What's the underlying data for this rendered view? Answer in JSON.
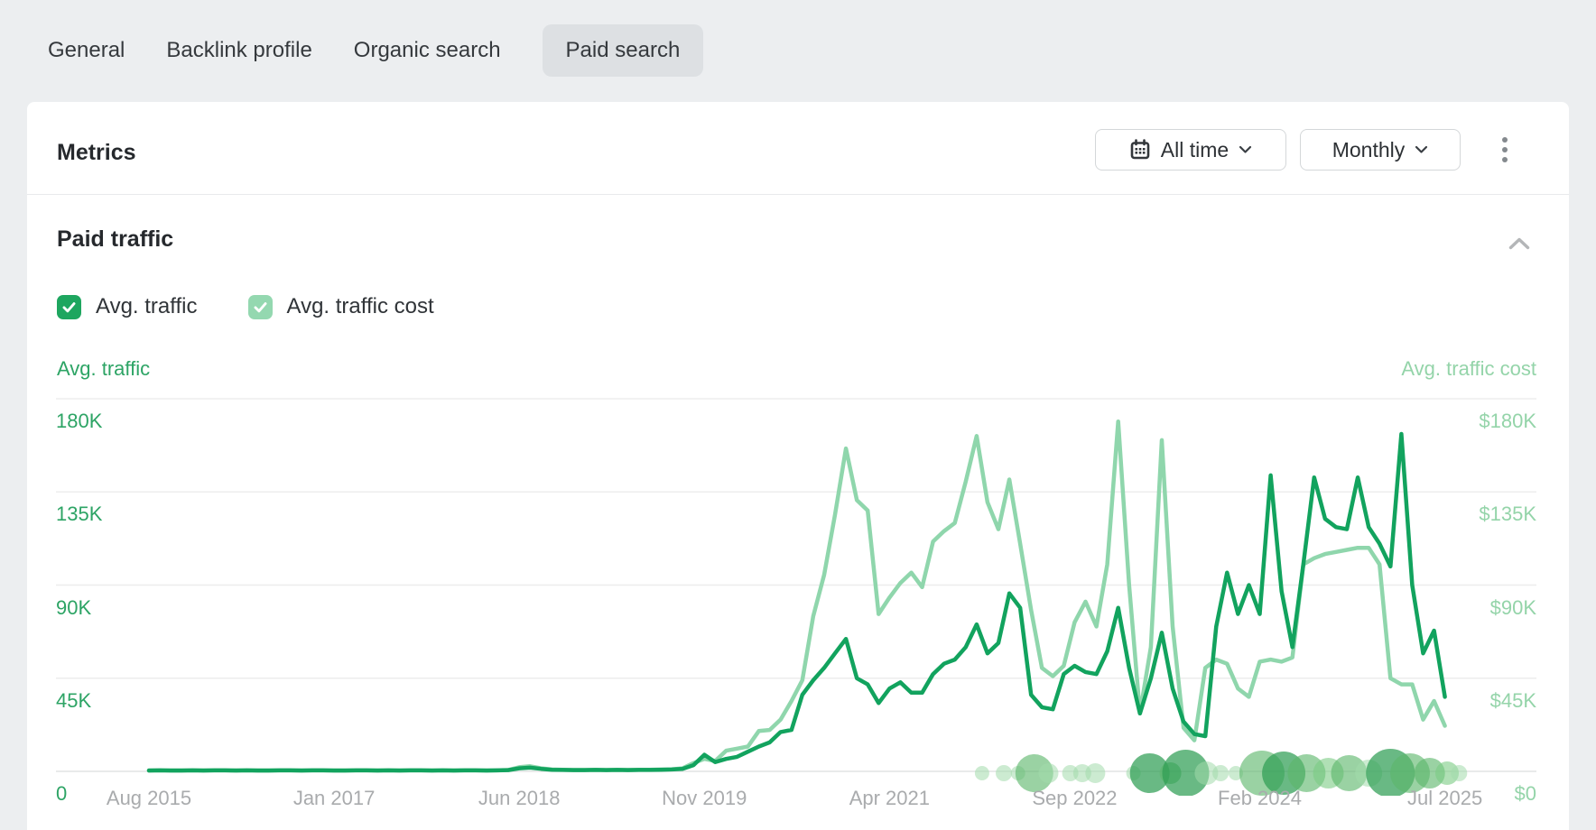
{
  "tabs": {
    "items": [
      {
        "label": "General",
        "active": false
      },
      {
        "label": "Backlink profile",
        "active": false
      },
      {
        "label": "Organic search",
        "active": false
      },
      {
        "label": "Paid search",
        "active": true
      }
    ]
  },
  "metrics_header": {
    "title": "Metrics",
    "date_range_button": {
      "label": "All time",
      "icon": "calendar-icon"
    },
    "granularity_button": {
      "label": "Monthly"
    },
    "more_menu_icon": "kebab-menu-icon"
  },
  "paid_traffic_section": {
    "title": "Paid traffic",
    "collapse_icon": "chevron-up-icon"
  },
  "legend": {
    "checkboxes": [
      {
        "label": "Avg. traffic",
        "checked": true,
        "color": "#1ea65f"
      },
      {
        "label": "Avg. traffic cost",
        "checked": true,
        "color": "#94d8b0"
      }
    ]
  },
  "chart_data": {
    "type": "line",
    "title": "Paid traffic",
    "interval": "monthly",
    "x_start": "Aug 2015",
    "x_end": "Jul 2025",
    "x_tick_labels": [
      "Aug 2015",
      "Jan 2017",
      "Jun 2018",
      "Nov 2019",
      "Apr 2021",
      "Sep 2022",
      "Feb 2024",
      "Jul 2025"
    ],
    "left_axis": {
      "title": "Avg. traffic",
      "ticks": [
        "0",
        "45K",
        "90K",
        "135K",
        "180K"
      ],
      "color": "#2da465",
      "range": [
        0,
        180000
      ]
    },
    "right_axis": {
      "title": "Avg. traffic cost",
      "ticks": [
        "$0",
        "$45K",
        "$90K",
        "$135K",
        "$180K"
      ],
      "color": "#94d4a9",
      "range": [
        0,
        180000
      ]
    },
    "grid": true,
    "grid_color": "#ededed",
    "series": [
      {
        "name": "Avg. traffic",
        "axis": "left",
        "unit": "visits",
        "color": "#12a35e",
        "values_thousands": [
          0.4,
          0.5,
          0.4,
          0.4,
          0.5,
          0.4,
          0.5,
          0.5,
          0.4,
          0.5,
          0.4,
          0.4,
          0.5,
          0.5,
          0.4,
          0.5,
          0.5,
          0.4,
          0.4,
          0.5,
          0.5,
          0.4,
          0.5,
          0.4,
          0.5,
          0.5,
          0.4,
          0.5,
          0.4,
          0.5,
          0.5,
          0.4,
          0.5,
          0.6,
          1.5,
          1.8,
          1.2,
          0.8,
          0.7,
          0.6,
          0.6,
          0.7,
          0.6,
          0.7,
          0.6,
          0.7,
          0.7,
          0.8,
          0.9,
          1.2,
          3,
          8,
          4.5,
          6,
          7,
          9.5,
          12,
          14,
          19,
          20,
          37,
          44,
          50,
          57,
          64,
          45,
          42,
          33,
          40,
          43,
          38,
          38,
          47,
          52,
          54,
          60,
          71,
          57,
          62,
          86,
          79,
          37,
          31,
          30,
          47,
          51,
          48,
          47,
          58,
          79,
          50,
          28,
          45,
          67,
          40,
          24,
          18,
          17,
          70,
          96,
          76,
          90,
          76,
          143,
          87,
          60,
          100,
          142,
          122,
          118,
          117,
          142,
          118,
          110,
          99,
          163,
          90,
          57,
          68,
          36
        ]
      },
      {
        "name": "Avg. traffic cost",
        "axis": "right",
        "unit": "USD",
        "color": "#8fd6ac",
        "values_thousands": [
          0.5,
          0.5,
          0.5,
          0.5,
          0.5,
          0.5,
          0.5,
          0.5,
          0.5,
          0.5,
          0.5,
          0.5,
          0.5,
          0.5,
          0.5,
          0.5,
          0.5,
          0.5,
          0.5,
          0.5,
          0.5,
          0.5,
          0.5,
          0.5,
          0.5,
          0.5,
          0.5,
          0.5,
          0.5,
          0.5,
          0.5,
          0.5,
          0.5,
          0.7,
          2,
          2.5,
          1.5,
          0.9,
          0.8,
          0.7,
          0.7,
          0.8,
          0.7,
          0.8,
          0.7,
          0.8,
          0.8,
          0.9,
          1,
          1.5,
          4,
          6,
          5,
          10,
          11,
          12,
          19.5,
          20,
          25,
          34,
          44,
          75,
          95,
          124,
          156,
          131,
          126,
          76,
          84,
          91,
          96,
          89,
          111,
          116,
          120,
          140,
          162,
          130,
          117,
          141,
          110,
          78,
          50,
          46,
          51,
          72,
          82,
          70,
          100,
          169,
          90,
          28,
          60,
          160,
          70,
          21,
          15,
          50,
          54,
          52,
          40,
          36,
          53,
          54,
          53,
          55,
          100,
          103,
          105,
          106,
          107,
          108,
          108,
          100,
          45,
          42,
          42,
          25,
          34,
          22
        ]
      }
    ],
    "event_bubbles": {
      "description": "overlapping translucent green bubbles along the x-axis baseline (month_index counted from Aug 2015)",
      "items": [
        {
          "month_index": 76.5,
          "r": 8,
          "tone": "light"
        },
        {
          "month_index": 78.5,
          "r": 9,
          "tone": "light"
        },
        {
          "month_index": 79.8,
          "r": 8,
          "tone": "light"
        },
        {
          "month_index": 81.3,
          "r": 21,
          "tone": "medium"
        },
        {
          "month_index": 82.6,
          "r": 11,
          "tone": "light"
        },
        {
          "month_index": 84.6,
          "r": 9,
          "tone": "light"
        },
        {
          "month_index": 85.7,
          "r": 10,
          "tone": "light"
        },
        {
          "month_index": 86.9,
          "r": 11,
          "tone": "light"
        },
        {
          "month_index": 90.4,
          "r": 8,
          "tone": "light"
        },
        {
          "month_index": 91.9,
          "r": 22,
          "tone": "dark"
        },
        {
          "month_index": 93.8,
          "r": 12,
          "tone": "medium"
        },
        {
          "month_index": 95.2,
          "r": 26,
          "tone": "dark"
        },
        {
          "month_index": 97.1,
          "r": 13,
          "tone": "light"
        },
        {
          "month_index": 98.4,
          "r": 9,
          "tone": "light"
        },
        {
          "month_index": 99.8,
          "r": 8,
          "tone": "light"
        },
        {
          "month_index": 102.2,
          "r": 25,
          "tone": "medium"
        },
        {
          "month_index": 104.2,
          "r": 24,
          "tone": "dark"
        },
        {
          "month_index": 106.3,
          "r": 21,
          "tone": "medium"
        },
        {
          "month_index": 108.3,
          "r": 17,
          "tone": "medium-light"
        },
        {
          "month_index": 110.2,
          "r": 20,
          "tone": "medium"
        },
        {
          "month_index": 112,
          "r": 15,
          "tone": "light"
        },
        {
          "month_index": 114,
          "r": 27,
          "tone": "dark"
        },
        {
          "month_index": 115.8,
          "r": 22,
          "tone": "medium"
        },
        {
          "month_index": 117.6,
          "r": 17,
          "tone": "medium"
        },
        {
          "month_index": 119.2,
          "r": 13,
          "tone": "medium-light"
        },
        {
          "month_index": 120.3,
          "r": 9,
          "tone": "light"
        }
      ],
      "tone_colors": {
        "light": "#a3dbac",
        "medium-light": "#7ccc84",
        "medium": "#5cb76b",
        "dark": "#2f9e55"
      }
    }
  }
}
